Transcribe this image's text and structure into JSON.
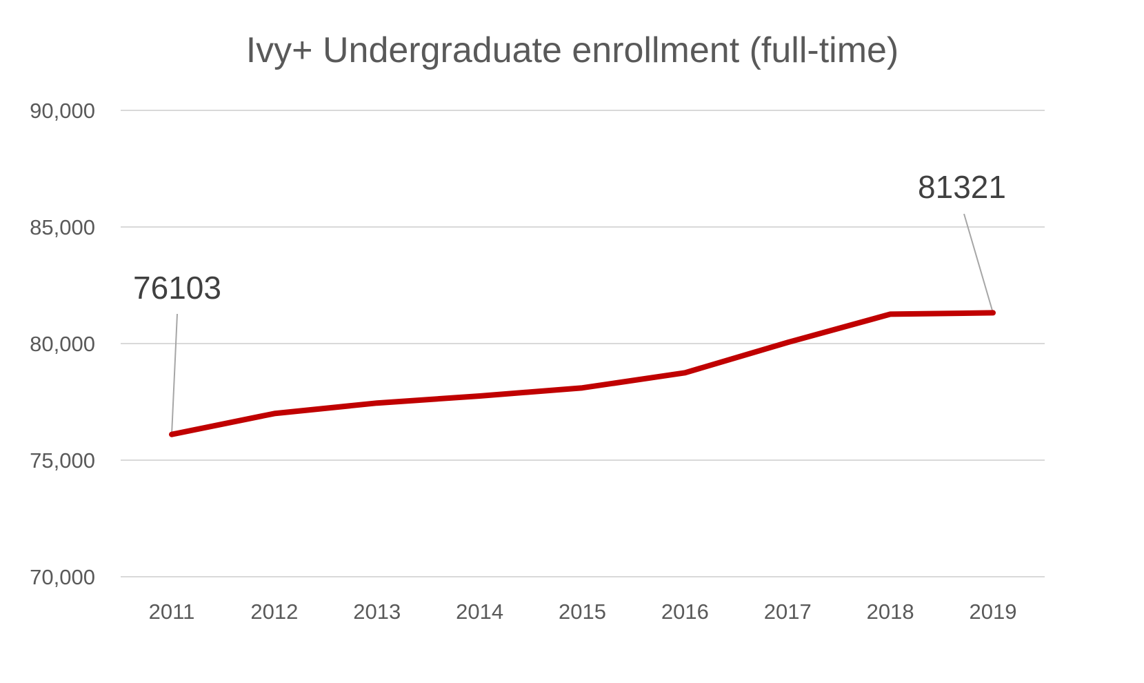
{
  "chart_data": {
    "type": "line",
    "title": "Ivy+ Undergraduate enrollment (full-time)",
    "xlabel": "",
    "ylabel": "",
    "categories": [
      "2011",
      "2012",
      "2013",
      "2014",
      "2015",
      "2016",
      "2017",
      "2018",
      "2019"
    ],
    "series": [
      {
        "values": [
          76103,
          77000,
          77450,
          77750,
          78100,
          78750,
          80050,
          81260,
          81321
        ],
        "color": "#c00000"
      }
    ],
    "ylim": [
      70000,
      90000
    ],
    "yticks": [
      70000,
      75000,
      80000,
      85000,
      90000
    ],
    "ytick_labels": [
      "70,000",
      "75,000",
      "80,000",
      "85,000",
      "90,000"
    ],
    "grid": true,
    "legend": "none",
    "data_labels": [
      {
        "index": 0,
        "text": "76103"
      },
      {
        "index": 8,
        "text": "81321"
      }
    ]
  }
}
